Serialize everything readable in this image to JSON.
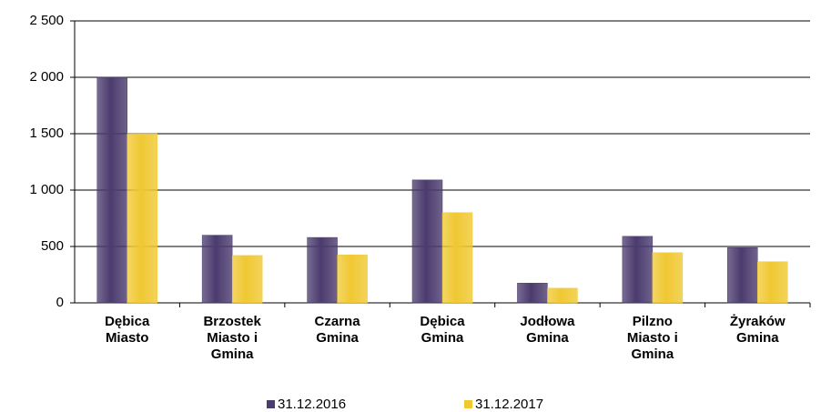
{
  "chart_data": {
    "type": "bar",
    "categories": [
      "Dębica Miasto",
      "Brzostek Miasto i Gmina",
      "Czarna Gmina",
      "Dębica Gmina",
      "Jodłowa Gmina",
      "Pilzno Miasto i Gmina",
      "Żyraków Gmina"
    ],
    "series": [
      {
        "name": "31.12.2016",
        "color": "#4b3b6e",
        "values": [
          2000,
          600,
          580,
          1090,
          175,
          590,
          490
        ]
      },
      {
        "name": "31.12.2017",
        "color": "#f0c832",
        "values": [
          1500,
          420,
          425,
          800,
          130,
          445,
          365
        ]
      }
    ],
    "ylim": [
      0,
      2500
    ],
    "yticks": [
      0,
      500,
      {
        "value": 1000,
        "label": "1 000"
      },
      {
        "value": 1500,
        "label": "1 500"
      },
      {
        "value": 2000,
        "label": "2 000"
      },
      {
        "value": 2500,
        "label": "2 500"
      }
    ],
    "grid": true,
    "legend": "bottom"
  }
}
